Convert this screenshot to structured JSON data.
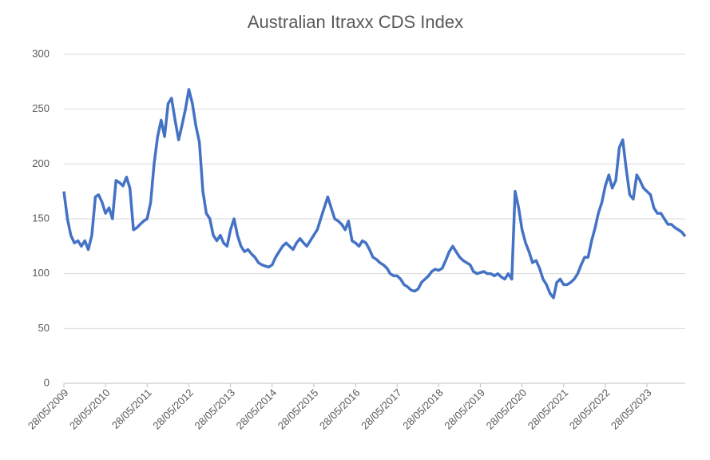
{
  "chart_data": {
    "type": "line",
    "title": "Australian Itraxx CDS Index",
    "x": [
      "28/05/2009",
      "28/06/2009",
      "28/07/2009",
      "28/08/2009",
      "28/09/2009",
      "28/10/2009",
      "28/11/2009",
      "28/12/2009",
      "28/01/2010",
      "28/02/2010",
      "28/03/2010",
      "28/04/2010",
      "28/05/2010",
      "28/06/2010",
      "28/07/2010",
      "28/08/2010",
      "28/09/2010",
      "28/10/2010",
      "28/11/2010",
      "28/12/2010",
      "28/01/2011",
      "28/02/2011",
      "28/03/2011",
      "28/04/2011",
      "28/05/2011",
      "28/06/2011",
      "28/07/2011",
      "28/08/2011",
      "28/09/2011",
      "28/10/2011",
      "28/11/2011",
      "28/12/2011",
      "28/01/2012",
      "28/02/2012",
      "28/03/2012",
      "28/04/2012",
      "28/05/2012",
      "28/06/2012",
      "28/07/2012",
      "28/08/2012",
      "28/09/2012",
      "28/10/2012",
      "28/11/2012",
      "28/12/2012",
      "28/01/2013",
      "28/02/2013",
      "28/03/2013",
      "28/04/2013",
      "28/05/2013",
      "28/06/2013",
      "28/07/2013",
      "28/08/2013",
      "28/09/2013",
      "28/10/2013",
      "28/11/2013",
      "28/12/2013",
      "28/01/2014",
      "28/02/2014",
      "28/03/2014",
      "28/04/2014",
      "28/05/2014",
      "28/06/2014",
      "28/07/2014",
      "28/08/2014",
      "28/09/2014",
      "28/10/2014",
      "28/11/2014",
      "28/12/2014",
      "28/01/2015",
      "28/02/2015",
      "28/03/2015",
      "28/04/2015",
      "28/05/2015",
      "28/06/2015",
      "28/07/2015",
      "28/08/2015",
      "28/09/2015",
      "28/10/2015",
      "28/11/2015",
      "28/12/2015",
      "28/01/2016",
      "28/02/2016",
      "28/03/2016",
      "28/04/2016",
      "28/05/2016",
      "28/06/2016",
      "28/07/2016",
      "28/08/2016",
      "28/09/2016",
      "28/10/2016",
      "28/11/2016",
      "28/12/2016",
      "28/01/2017",
      "28/02/2017",
      "28/03/2017",
      "28/04/2017",
      "28/05/2017",
      "28/06/2017",
      "28/07/2017",
      "28/08/2017",
      "28/09/2017",
      "28/10/2017",
      "28/11/2017",
      "28/12/2017",
      "28/01/2018",
      "28/02/2018",
      "28/03/2018",
      "28/04/2018",
      "28/05/2018",
      "28/06/2018",
      "28/07/2018",
      "28/08/2018",
      "28/09/2018",
      "28/10/2018",
      "28/11/2018",
      "28/12/2018",
      "28/01/2019",
      "28/02/2019",
      "28/03/2019",
      "28/04/2019",
      "28/05/2019",
      "28/06/2019",
      "28/07/2019",
      "28/08/2019",
      "28/09/2019",
      "28/10/2019",
      "28/11/2019",
      "28/12/2019",
      "28/01/2020",
      "28/02/2020",
      "28/03/2020",
      "28/04/2020",
      "28/05/2020",
      "28/06/2020",
      "28/07/2020",
      "28/08/2020",
      "28/09/2020",
      "28/10/2020",
      "28/11/2020",
      "28/12/2020",
      "28/01/2021",
      "28/02/2021",
      "28/03/2021",
      "28/04/2021",
      "28/05/2021",
      "28/06/2021",
      "28/07/2021",
      "28/08/2021",
      "28/09/2021",
      "28/10/2021",
      "28/11/2021",
      "28/12/2021",
      "28/01/2022",
      "28/02/2022",
      "28/03/2022",
      "28/04/2022",
      "28/05/2022",
      "28/06/2022",
      "28/07/2022",
      "28/08/2022",
      "28/09/2022",
      "28/10/2022",
      "28/11/2022",
      "28/12/2022",
      "28/01/2023",
      "28/02/2023",
      "28/03/2023",
      "28/04/2023",
      "28/05/2023",
      "28/06/2023",
      "28/07/2023",
      "28/08/2023",
      "28/09/2023",
      "28/10/2023",
      "28/11/2023",
      "28/12/2023",
      "28/01/2024",
      "28/02/2024",
      "28/03/2024",
      "28/04/2024"
    ],
    "series": [
      {
        "name": "Australian Itraxx CDS Index",
        "color": "#4472c4",
        "values": [
          175,
          150,
          135,
          128,
          130,
          125,
          130,
          122,
          135,
          170,
          172,
          165,
          155,
          160,
          150,
          185,
          183,
          180,
          188,
          178,
          140,
          142,
          145,
          148,
          150,
          165,
          200,
          225,
          240,
          225,
          255,
          260,
          240,
          222,
          235,
          250,
          268,
          255,
          235,
          220,
          175,
          155,
          150,
          135,
          130,
          135,
          128,
          125,
          140,
          150,
          135,
          125,
          120,
          122,
          118,
          115,
          110,
          108,
          107,
          106,
          108,
          115,
          120,
          125,
          128,
          125,
          122,
          128,
          132,
          128,
          125,
          130,
          135,
          140,
          150,
          160,
          170,
          160,
          150,
          148,
          145,
          140,
          148,
          130,
          128,
          125,
          130,
          128,
          122,
          115,
          113,
          110,
          108,
          105,
          100,
          98,
          98,
          95,
          90,
          88,
          85,
          84,
          86,
          92,
          95,
          98,
          102,
          104,
          103,
          105,
          112,
          120,
          125,
          120,
          115,
          112,
          110,
          108,
          102,
          100,
          101,
          102,
          100,
          100,
          98,
          100,
          97,
          95,
          100,
          95,
          175,
          160,
          140,
          128,
          120,
          110,
          112,
          105,
          95,
          90,
          82,
          78,
          92,
          95,
          90,
          90,
          92,
          95,
          100,
          108,
          115,
          115,
          130,
          142,
          155,
          165,
          180,
          190,
          178,
          185,
          215,
          222,
          195,
          172,
          168,
          190,
          185,
          178,
          175,
          172,
          160,
          155,
          155,
          150,
          145,
          145,
          142,
          140,
          138,
          134
        ]
      }
    ],
    "xlim": [
      "28/05/2009",
      "28/04/2024"
    ],
    "xticks": [
      "28/05/2009",
      "28/05/2010",
      "28/05/2011",
      "28/05/2012",
      "28/05/2013",
      "28/05/2014",
      "28/05/2015",
      "28/05/2016",
      "28/05/2017",
      "28/05/2018",
      "28/05/2019",
      "28/05/2020",
      "28/05/2021",
      "28/05/2022",
      "28/05/2023"
    ],
    "ylim": [
      0,
      300
    ],
    "yticks": [
      0,
      50,
      100,
      150,
      200,
      250,
      300
    ],
    "grid": true
  }
}
